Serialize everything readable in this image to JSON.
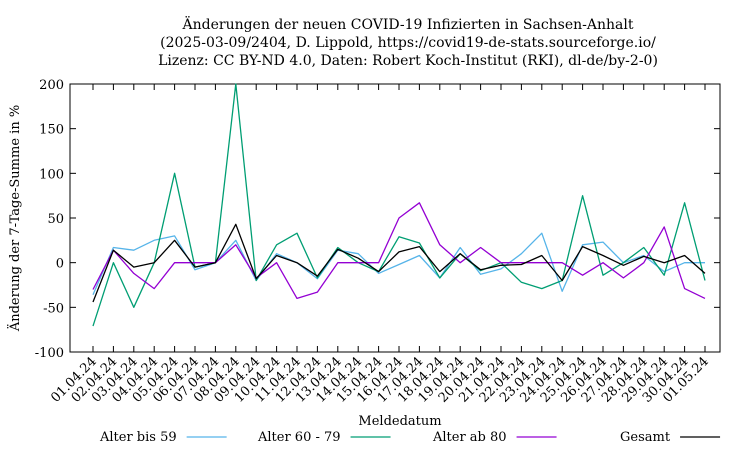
{
  "chart_data": {
    "type": "line",
    "title_lines": [
      "Änderungen der neuen COVID-19 Infizierten in Sachsen-Anhalt",
      "(2025-03-09/2404, D. Lippold, https://covid19-de-stats.sourceforge.io/",
      "Lizenz: CC BY-ND 4.0, Daten: Robert Koch-Institut (RKI), dl-de/by-2-0)"
    ],
    "xlabel": "Meldedatum",
    "ylabel": "Änderung der 7-Tage-Summe in %",
    "ylim": [
      -100,
      200
    ],
    "yticks": [
      -100,
      -50,
      0,
      50,
      100,
      150,
      200
    ],
    "grid": false,
    "legend_position": "bottom",
    "categories": [
      "01.04.24",
      "02.04.24",
      "03.04.24",
      "04.04.24",
      "05.04.24",
      "06.04.24",
      "07.04.24",
      "08.04.24",
      "09.04.24",
      "10.04.24",
      "11.04.24",
      "12.04.24",
      "13.04.24",
      "14.04.24",
      "15.04.24",
      "16.04.24",
      "17.04.24",
      "18.04.24",
      "19.04.24",
      "20.04.24",
      "21.04.24",
      "22.04.24",
      "23.04.24",
      "24.04.24",
      "25.04.24",
      "26.04.24",
      "27.04.24",
      "28.04.24",
      "29.04.24",
      "30.04.24",
      "01.05.24"
    ],
    "series": [
      {
        "name": "Alter bis 59",
        "color": "#56b4e9",
        "values": [
          -36,
          17,
          14,
          25,
          30,
          -8,
          0,
          25,
          -20,
          10,
          0,
          -18,
          14,
          10,
          -12,
          -2,
          8,
          -17,
          17,
          -13,
          -7,
          10,
          33,
          -32,
          20,
          23,
          0,
          8,
          -10,
          0,
          0
        ]
      },
      {
        "name": "Alter 60 - 79",
        "color": "#009e73",
        "values": [
          -71,
          0,
          -50,
          0,
          100,
          -5,
          0,
          200,
          -20,
          20,
          33,
          -17,
          17,
          0,
          -10,
          29,
          22,
          -17,
          10,
          -9,
          0,
          -22,
          -29,
          -20,
          75,
          -14,
          0,
          17,
          -14,
          67,
          -20
        ]
      },
      {
        "name": "Alter ab 80",
        "color": "#9400d3",
        "values": [
          -30,
          14,
          -12,
          -29,
          0,
          0,
          0,
          20,
          -17,
          0,
          -40,
          -33,
          0,
          0,
          0,
          50,
          67,
          20,
          0,
          17,
          0,
          0,
          0,
          0,
          -14,
          0,
          -17,
          0,
          40,
          -29,
          -40
        ]
      },
      {
        "name": "Gesamt",
        "color": "#000000",
        "values": [
          -44,
          14,
          -5,
          0,
          25,
          -5,
          0,
          43,
          -18,
          8,
          0,
          -15,
          15,
          5,
          -10,
          12,
          18,
          -10,
          10,
          -8,
          -3,
          -2,
          8,
          -20,
          18,
          8,
          -3,
          7,
          0,
          8,
          -12
        ]
      }
    ]
  }
}
